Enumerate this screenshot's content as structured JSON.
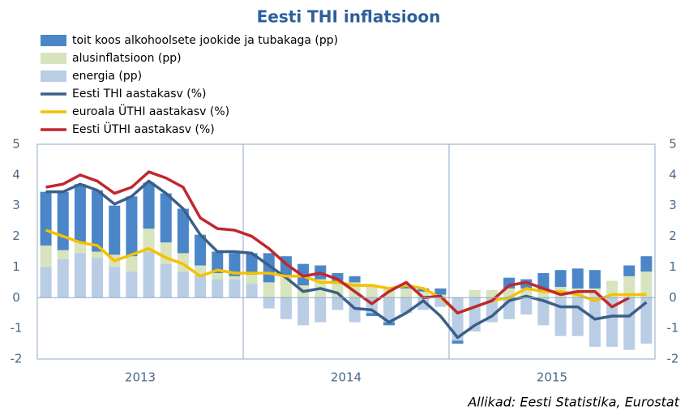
{
  "chart_data": {
    "type": "stacked-bar-line",
    "title": "Eesti THI inflatsioon",
    "source": "Allikad: Eesti Statistika, Eurostat",
    "categories": [
      null,
      null,
      null,
      null,
      null,
      null,
      null,
      null,
      null,
      null,
      null,
      null,
      null,
      null,
      null,
      null,
      null,
      null,
      null,
      null,
      null,
      null,
      null,
      null,
      null,
      null,
      null,
      null,
      null,
      null,
      null,
      null,
      null,
      null,
      null,
      null
    ],
    "x_groups": [
      "2013",
      "2014",
      "2015"
    ],
    "series": [
      {
        "name": "toit koos alkohoolsete jookide ja tubakaga (pp)",
        "kind": "bar",
        "color": "#4a86c8",
        "values": [
          1.75,
          1.9,
          1.9,
          2.0,
          1.6,
          1.95,
          1.5,
          1.6,
          1.45,
          1.0,
          0.7,
          0.75,
          0.7,
          0.95,
          0.65,
          0.7,
          0.45,
          0.3,
          0.2,
          -0.1,
          -0.1,
          0.1,
          0.1,
          0.2,
          -0.1,
          0.0,
          0.0,
          0.35,
          0.3,
          0.6,
          0.55,
          0.65,
          0.6,
          0.0,
          0.35,
          0.5
        ]
      },
      {
        "name": "alusinflatsioon (pp)",
        "kind": "bar",
        "color": "#d7e4bd",
        "values": [
          0.7,
          0.3,
          0.35,
          0.2,
          0.4,
          0.5,
          0.75,
          0.7,
          0.6,
          0.3,
          0.2,
          0.1,
          0.3,
          0.5,
          0.7,
          0.4,
          0.6,
          0.5,
          0.5,
          0.4,
          0.3,
          0.3,
          0.2,
          0.1,
          0.0,
          0.25,
          0.25,
          0.3,
          0.3,
          0.2,
          0.35,
          0.3,
          0.3,
          0.55,
          0.7,
          0.85
        ]
      },
      {
        "name": "energia (pp)",
        "kind": "bar",
        "color": "#b9cde5",
        "values": [
          1.0,
          1.25,
          1.45,
          1.3,
          1.0,
          0.85,
          1.5,
          1.1,
          0.85,
          0.75,
          0.6,
          0.6,
          0.45,
          -0.35,
          -0.7,
          -0.9,
          -0.8,
          -0.4,
          -0.8,
          -0.5,
          -0.8,
          -0.5,
          -0.4,
          -0.3,
          -1.4,
          -1.1,
          -0.8,
          -0.7,
          -0.55,
          -0.9,
          -1.25,
          -1.25,
          -1.6,
          -1.6,
          -1.7,
          -1.5
        ]
      },
      {
        "name": "Eesti THI aastakasv (%)",
        "kind": "line",
        "color": "#3b5f8a",
        "values": [
          3.45,
          3.45,
          3.7,
          3.5,
          3.05,
          3.3,
          3.8,
          3.4,
          2.9,
          2.05,
          1.5,
          1.5,
          1.45,
          1.05,
          0.65,
          0.2,
          0.3,
          0.15,
          -0.35,
          -0.4,
          -0.8,
          -0.5,
          -0.1,
          -0.6,
          -1.3,
          -0.9,
          -0.6,
          -0.1,
          0.05,
          -0.1,
          -0.3,
          -0.3,
          -0.7,
          -0.6,
          -0.6,
          -0.15
        ]
      },
      {
        "name": "euroala ÜTHI aastakasv (%)",
        "kind": "line",
        "color": "#f5c100",
        "values": [
          2.2,
          2.0,
          1.8,
          1.7,
          1.2,
          1.4,
          1.6,
          1.3,
          1.1,
          0.7,
          0.9,
          0.8,
          0.8,
          0.8,
          0.7,
          0.7,
          0.5,
          0.5,
          0.4,
          0.4,
          0.3,
          0.4,
          0.3,
          0.0,
          -0.5,
          -0.3,
          -0.1,
          0.0,
          0.3,
          0.2,
          0.2,
          0.1,
          -0.1,
          0.1,
          0.1,
          0.1
        ]
      },
      {
        "name": "Eesti ÜTHI aastakasv (%)",
        "kind": "line",
        "color": "#c0282e",
        "values": [
          3.6,
          3.7,
          4.0,
          3.8,
          3.4,
          3.6,
          4.1,
          3.9,
          3.6,
          2.6,
          2.25,
          2.2,
          2.0,
          1.6,
          1.1,
          0.7,
          0.8,
          0.6,
          0.2,
          -0.2,
          0.2,
          0.5,
          0.0,
          0.05,
          -0.5,
          -0.3,
          -0.1,
          0.4,
          0.5,
          0.3,
          0.1,
          0.2,
          0.2,
          -0.3,
          0.0,
          null
        ]
      }
    ],
    "ylim": [
      -2,
      5
    ],
    "yticks": [
      -2,
      -1,
      0,
      1,
      2,
      3,
      4,
      5
    ],
    "y2lim": [
      -2,
      5
    ],
    "y2ticks": [
      -2,
      -1,
      0,
      1,
      2,
      3,
      4,
      5
    ],
    "legend": "top-left"
  }
}
